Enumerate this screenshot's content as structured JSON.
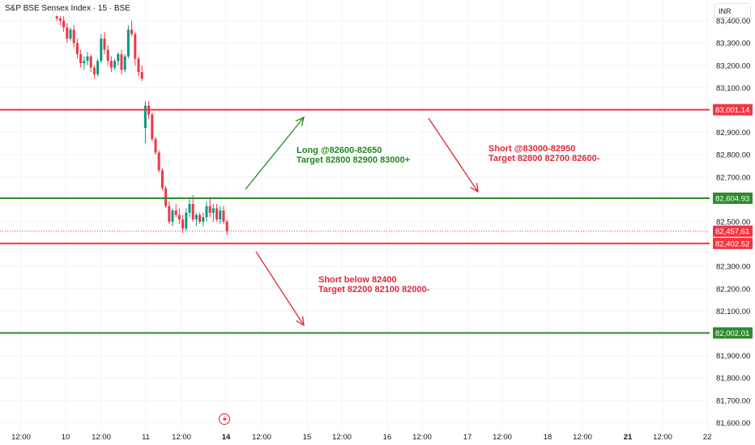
{
  "header": {
    "title": "S&P BSE Sensex Index · 15 · BSE",
    "currency": "INR"
  },
  "colors": {
    "up": "#089981",
    "down": "#f23645",
    "red_line": "#f23645",
    "green_line": "#2e8b2e",
    "annotation_green": "#1e8a1e",
    "annotation_red": "#e0283a"
  },
  "chart_data": {
    "type": "candlestick",
    "interval": "15",
    "y_ticks": [
      "83,400.00",
      "83,300.00",
      "83,200.00",
      "83,100.00",
      "82,900.00",
      "82,800.00",
      "82,700.00",
      "82,500.00",
      "82,300.00",
      "82,200.00",
      "82,100.00",
      "81,900.00",
      "81,800.00",
      "81,700.00",
      "81,600.00"
    ],
    "y_tick_values": [
      83400,
      83300,
      83200,
      83100,
      82900,
      82800,
      82700,
      82500,
      82300,
      82200,
      82100,
      81900,
      81800,
      81700,
      81600
    ],
    "x_ticks": [
      "12:00",
      "10",
      "12:00",
      "11",
      "12:00",
      "14",
      "12:00",
      "15",
      "12:00",
      "16",
      "12:00",
      "17",
      "12:00",
      "18",
      "12:00",
      "21",
      "12:00",
      "22"
    ],
    "bold_x_ticks": [
      "14",
      "21"
    ],
    "ylim": [
      81580,
      83420
    ],
    "horizontal_lines": [
      {
        "value": 83001.14,
        "label": "83,001.14",
        "color": "red"
      },
      {
        "value": 82604.93,
        "label": "82,604.93",
        "color": "green"
      },
      {
        "value": 82402.52,
        "label": "82,402.52",
        "color": "red"
      },
      {
        "value": 82002.01,
        "label": "82,002.01",
        "color": "green"
      }
    ],
    "last_price": {
      "value": 82457.61,
      "label": "82,457.61"
    },
    "annotations": [
      {
        "lines": [
          "Long @82600-82650",
          "Target 82800 82900 83000+"
        ],
        "color": "green"
      },
      {
        "lines": [
          "Short @83000-82950",
          "Target 82800 82700 82600-"
        ],
        "color": "red"
      },
      {
        "lines": [
          "Short below 82400",
          "Target 82200 82100 82000-"
        ],
        "color": "red"
      }
    ],
    "candles": [
      [
        83450,
        83460,
        83420,
        83430
      ],
      [
        83430,
        83440,
        83400,
        83410
      ],
      [
        83410,
        83420,
        83380,
        83400
      ],
      [
        83400,
        83420,
        83350,
        83370
      ],
      [
        83370,
        83390,
        83300,
        83320
      ],
      [
        83320,
        83370,
        83310,
        83360
      ],
      [
        83360,
        83380,
        83280,
        83300
      ],
      [
        83300,
        83320,
        83230,
        83250
      ],
      [
        83250,
        83270,
        83190,
        83210
      ],
      [
        83210,
        83240,
        83180,
        83220
      ],
      [
        83220,
        83260,
        83200,
        83240
      ],
      [
        83240,
        83250,
        83170,
        83190
      ],
      [
        83190,
        83200,
        83140,
        83160
      ],
      [
        83160,
        83230,
        83150,
        83220
      ],
      [
        83220,
        83340,
        83210,
        83320
      ],
      [
        83320,
        83350,
        83250,
        83270
      ],
      [
        83270,
        83290,
        83200,
        83220
      ],
      [
        83220,
        83240,
        83170,
        83190
      ],
      [
        83190,
        83230,
        83180,
        83220
      ],
      [
        83220,
        83260,
        83200,
        83250
      ],
      [
        83250,
        83270,
        83160,
        83180
      ],
      [
        83180,
        83250,
        83170,
        83240
      ],
      [
        83240,
        83380,
        83230,
        83360
      ],
      [
        83360,
        83400,
        83330,
        83340
      ],
      [
        83340,
        83350,
        83200,
        83230
      ],
      [
        83230,
        83240,
        83150,
        83170
      ],
      [
        83170,
        83200,
        83130,
        83140
      ],
      [
        82920,
        83040,
        82850,
        83020
      ],
      [
        83020,
        83040,
        82960,
        82980
      ],
      [
        82980,
        82990,
        82860,
        82870
      ],
      [
        82870,
        82880,
        82800,
        82810
      ],
      [
        82810,
        82820,
        82720,
        82730
      ],
      [
        82730,
        82740,
        82640,
        82650
      ],
      [
        82650,
        82660,
        82560,
        82570
      ],
      [
        82570,
        82590,
        82490,
        82500
      ],
      [
        82500,
        82560,
        82480,
        82550
      ],
      [
        82550,
        82580,
        82520,
        82530
      ],
      [
        82530,
        82560,
        82490,
        82510
      ],
      [
        82510,
        82530,
        82450,
        82470
      ],
      [
        82470,
        82560,
        82460,
        82540
      ],
      [
        82540,
        82600,
        82520,
        82580
      ],
      [
        82580,
        82620,
        82500,
        82510
      ],
      [
        82510,
        82540,
        82480,
        82530
      ],
      [
        82530,
        82540,
        82490,
        82500
      ],
      [
        82500,
        82540,
        82480,
        82520
      ],
      [
        82520,
        82590,
        82500,
        82570
      ],
      [
        82570,
        82610,
        82520,
        82540
      ],
      [
        82540,
        82580,
        82500,
        82560
      ],
      [
        82560,
        82580,
        82500,
        82510
      ],
      [
        82510,
        82570,
        82490,
        82550
      ],
      [
        82550,
        82570,
        82490,
        82500
      ],
      [
        82500,
        82510,
        82440,
        82458
      ]
    ]
  }
}
